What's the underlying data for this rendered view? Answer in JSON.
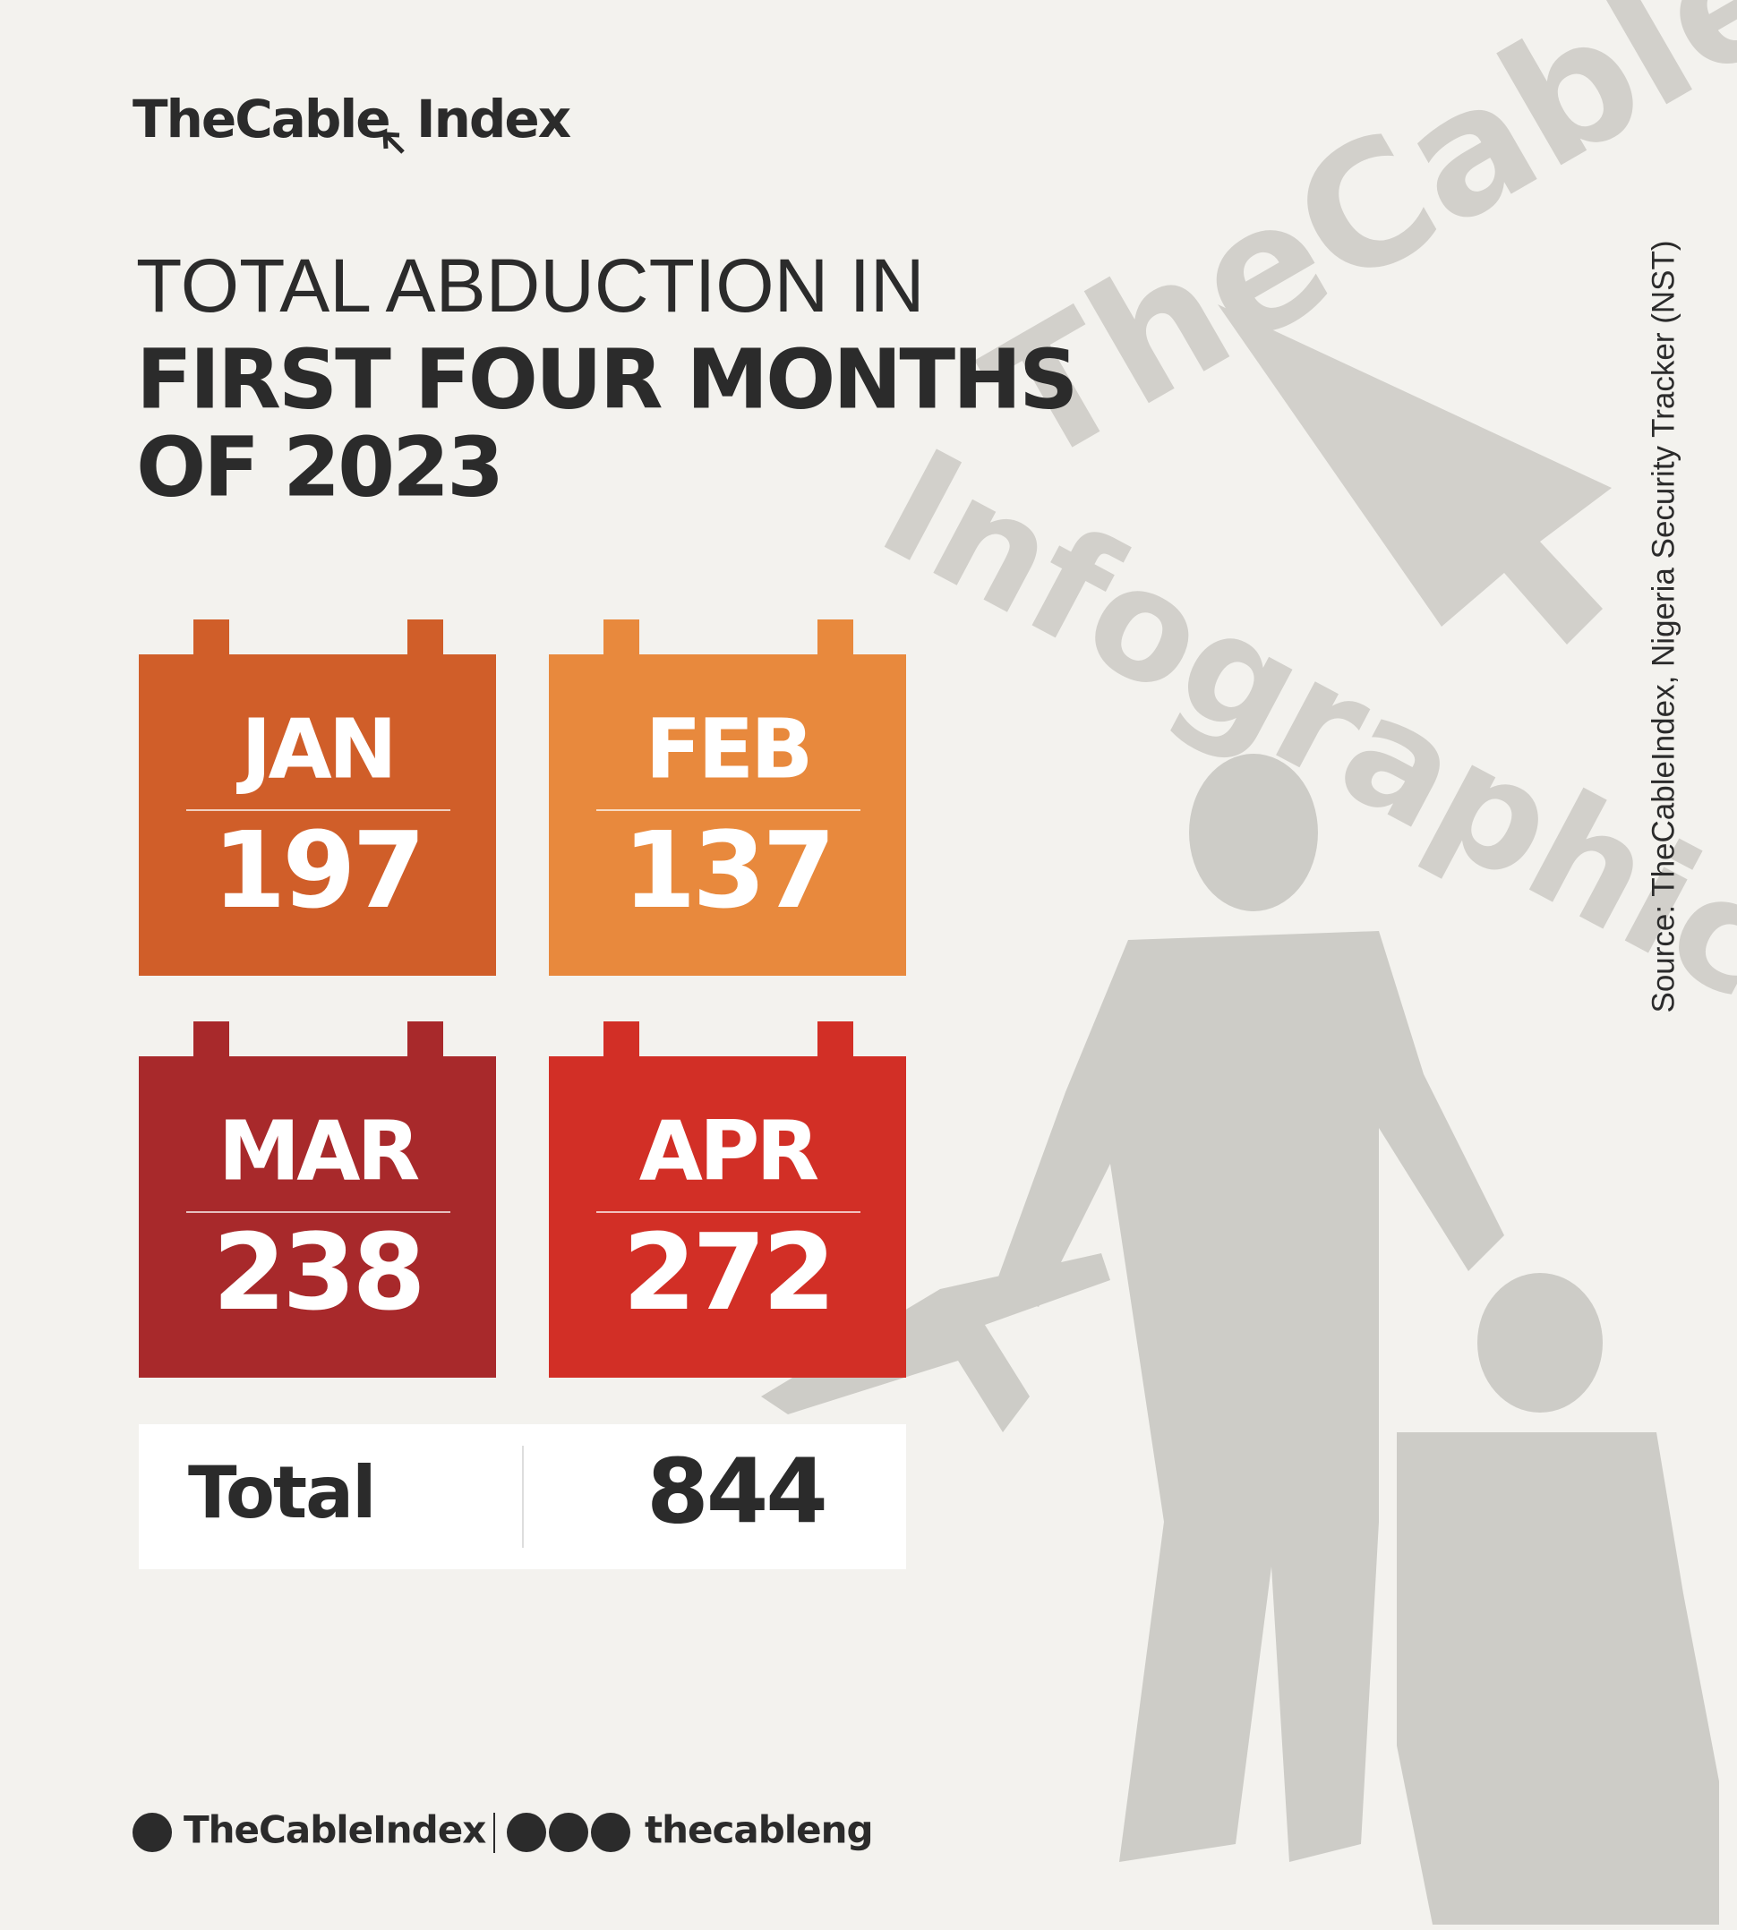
{
  "header": {
    "logo": "TheCable",
    "logo_suffix": "Index"
  },
  "title": {
    "line1": "TOTAL ABDUCTION IN",
    "line2": "FIRST FOUR MONTHS",
    "line3": "OF 2023"
  },
  "months": [
    {
      "label": "JAN",
      "value": 197,
      "color": "#d05e29"
    },
    {
      "label": "FEB",
      "value": 137,
      "color": "#e8893d"
    },
    {
      "label": "MAR",
      "value": 238,
      "color": "#a8292b"
    },
    {
      "label": "APR",
      "value": 272,
      "color": "#d22f26"
    }
  ],
  "total": {
    "label": "Total",
    "value": 844
  },
  "source": "Source: TheCableIndex, Nigeria Security Tracker (NST)",
  "footer": {
    "handle": "TheCableIndex",
    "social": "thecableng"
  },
  "watermark": {
    "line1": "TheCable",
    "line2": "Infographic"
  }
}
